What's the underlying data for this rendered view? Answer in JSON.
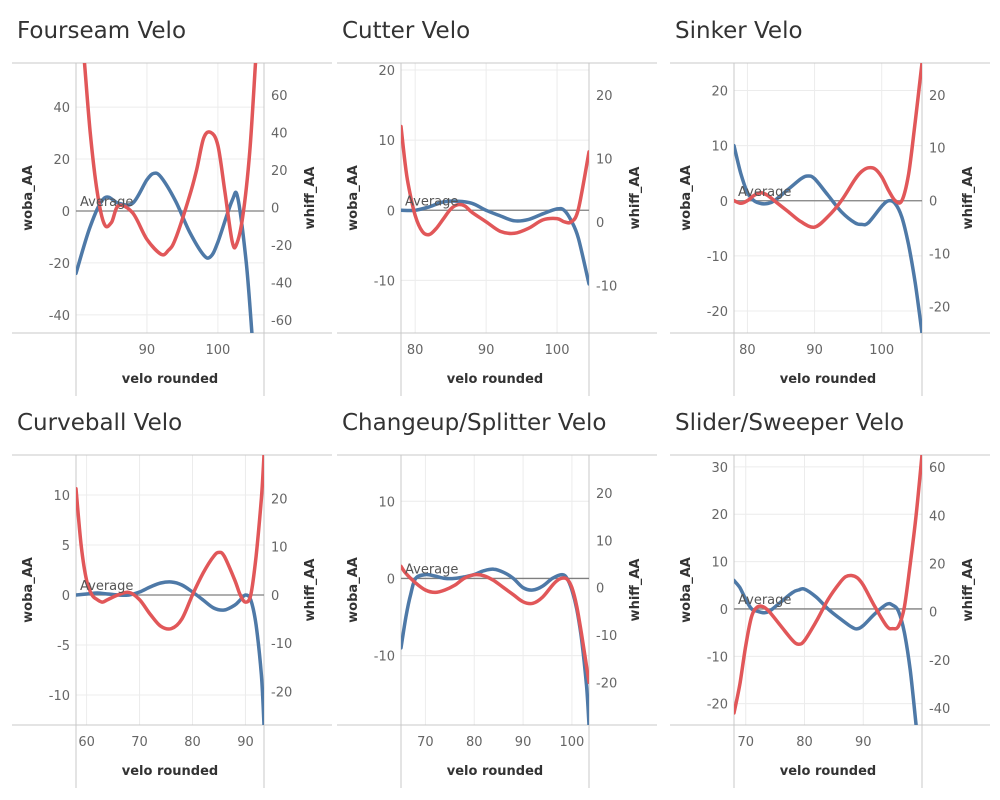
{
  "colors": {
    "woba": "#4e79a7",
    "whiff": "#e15759",
    "grid": "#ececec",
    "axis": "#c8c8c8",
    "refline": "#7f7f7f"
  },
  "chart_data": [
    {
      "type": "line",
      "title": "Fourseam Velo",
      "xlabel": "velo rounded",
      "ylabel_left": "woba_AA",
      "ylabel_right": "whiff_AA",
      "reference_label": "Average",
      "reference_value": 0,
      "xlim": [
        80,
        106.5
      ],
      "ylim_left": [
        -47,
        57
      ],
      "ylim_right": [
        -67,
        77
      ],
      "x_ticks": [
        90,
        100
      ],
      "y_ticks_left": [
        -40,
        -20,
        0,
        20,
        40
      ],
      "y_ticks_right": [
        -60,
        -40,
        -20,
        0,
        20,
        40,
        60
      ],
      "series": [
        {
          "name": "woba_AA",
          "axis": "left",
          "x": [
            80,
            82,
            84,
            86,
            88,
            90,
            91,
            92,
            94,
            96,
            98,
            99,
            100,
            102,
            102.8,
            104,
            104.8
          ],
          "y": [
            -24,
            -6,
            5,
            3,
            3,
            12,
            14.5,
            13,
            4,
            -8,
            -17,
            -17.5,
            -12,
            4,
            5,
            -20,
            -47
          ]
        },
        {
          "name": "whiff_AA",
          "axis": "right",
          "x": [
            81.2,
            82,
            83,
            84,
            85,
            86,
            88,
            90,
            92,
            93,
            94,
            96,
            97,
            98,
            99,
            100,
            101,
            102,
            102.6,
            103.5,
            104.5,
            105.3
          ],
          "y": [
            77,
            40,
            8,
            -9,
            -8,
            1,
            -3,
            -17,
            -25,
            -23,
            -17,
            6,
            20,
            37,
            40,
            33,
            8,
            -18,
            -20,
            -5,
            30,
            77
          ]
        }
      ]
    },
    {
      "type": "line",
      "title": "Cutter Velo",
      "xlabel": "velo rounded",
      "ylabel_left": "woba_AA",
      "ylabel_right": "whiff_AA",
      "reference_label": "Average",
      "reference_value": 0,
      "xlim": [
        78,
        104.5
      ],
      "ylim_left": [
        -17.5,
        21
      ],
      "ylim_right": [
        -17.5,
        25
      ],
      "x_ticks": [
        80,
        90,
        100
      ],
      "y_ticks_left": [
        -10,
        0,
        10,
        20
      ],
      "y_ticks_right": [
        -10,
        0,
        10,
        20
      ],
      "series": [
        {
          "name": "woba_AA",
          "axis": "left",
          "x": [
            78,
            80,
            82,
            84,
            86,
            88,
            90,
            92,
            94,
            96,
            98,
            100,
            101,
            102,
            103,
            104.5
          ],
          "y": [
            0,
            0,
            0.5,
            1.2,
            1.3,
            1,
            0,
            -0.8,
            -1.5,
            -1.3,
            -0.5,
            0.2,
            0,
            -1.5,
            -4,
            -10.5
          ]
        },
        {
          "name": "whiff_AA",
          "axis": "right",
          "x": [
            78,
            78.5,
            79,
            80,
            81,
            82,
            83,
            84,
            85,
            86,
            87,
            88,
            90,
            92,
            94,
            96,
            98,
            100,
            101,
            102,
            103,
            104.5
          ],
          "y": [
            15,
            10,
            6,
            1,
            -1.5,
            -2,
            -1,
            0.5,
            2,
            2.7,
            2.5,
            1.5,
            0,
            -1.5,
            -1.8,
            -1,
            0.3,
            0.5,
            0,
            0,
            2,
            11
          ]
        }
      ]
    },
    {
      "type": "line",
      "title": "Sinker Velo",
      "xlabel": "velo rounded",
      "ylabel_left": "woba_AA",
      "ylabel_right": "whiff_AA",
      "reference_label": "Average",
      "reference_value": 0,
      "xlim": [
        78,
        106
      ],
      "ylim_left": [
        -24,
        25
      ],
      "ylim_right": [
        -25,
        26
      ],
      "x_ticks": [
        80,
        90,
        100
      ],
      "y_ticks_left": [
        -20,
        -10,
        0,
        10,
        20
      ],
      "y_ticks_right": [
        -20,
        -10,
        0,
        10,
        20
      ],
      "series": [
        {
          "name": "woba_AA",
          "axis": "left",
          "x": [
            78,
            79,
            80,
            81,
            82,
            83,
            84,
            86,
            88,
            89,
            90,
            92,
            94,
            96,
            97,
            98,
            100,
            101,
            102,
            103,
            104,
            105,
            106
          ],
          "y": [
            10,
            5,
            1.5,
            0,
            -0.5,
            -0.5,
            0,
            2,
            4,
            4.5,
            4,
            1,
            -2,
            -4,
            -4.3,
            -4,
            -1,
            0,
            -0.5,
            -3,
            -8,
            -15,
            -24
          ]
        },
        {
          "name": "whiff_AA",
          "axis": "right",
          "x": [
            78,
            79,
            80,
            81,
            82,
            83,
            84,
            86,
            88,
            90,
            92,
            94,
            96,
            97,
            98,
            99,
            100,
            101,
            102,
            103,
            104,
            105,
            106
          ],
          "y": [
            0,
            -0.5,
            0,
            1,
            1.5,
            1,
            0,
            -2,
            -4,
            -5,
            -3,
            0,
            4,
            5.5,
            6.2,
            6,
            4.5,
            2,
            0,
            0,
            5,
            15,
            26
          ]
        }
      ]
    },
    {
      "type": "line",
      "title": "Curveball Velo",
      "xlabel": "velo rounded",
      "ylabel_left": "woba_AA",
      "ylabel_right": "whiff_AA",
      "reference_label": "Average",
      "reference_value": 0,
      "xlim": [
        58,
        93.5
      ],
      "ylim_left": [
        -13,
        14
      ],
      "ylim_right": [
        -27,
        29
      ],
      "x_ticks": [
        60,
        70,
        80,
        90
      ],
      "y_ticks_left": [
        -10,
        -5,
        0,
        5,
        10
      ],
      "y_ticks_right": [
        -20,
        -10,
        0,
        10,
        20
      ],
      "series": [
        {
          "name": "woba_AA",
          "axis": "left",
          "x": [
            58,
            60,
            62,
            64,
            66,
            68,
            70,
            72,
            74,
            76,
            78,
            80,
            82,
            84,
            86,
            88,
            89,
            90,
            91,
            92,
            93,
            93.5
          ],
          "y": [
            0,
            0.1,
            0.2,
            0.1,
            0,
            0,
            0.3,
            0.8,
            1.2,
            1.3,
            1,
            0.3,
            -0.5,
            -1.3,
            -1.5,
            -1,
            -0.5,
            0,
            -0.5,
            -3,
            -8,
            -13
          ]
        },
        {
          "name": "whiff_AA",
          "axis": "right",
          "x": [
            58,
            59,
            60,
            61,
            62,
            63,
            64,
            66,
            68,
            70,
            72,
            74,
            76,
            78,
            80,
            82,
            84,
            85,
            86,
            88,
            89,
            90,
            91,
            92,
            93,
            93.5
          ],
          "y": [
            22,
            10,
            3,
            0,
            -1,
            -1.5,
            -1,
            0,
            0.5,
            -1,
            -4,
            -6.5,
            -7,
            -5,
            0,
            4.5,
            8,
            8.8,
            8,
            3,
            0,
            -1.5,
            0,
            8,
            20,
            29
          ]
        }
      ]
    },
    {
      "type": "line",
      "title": "Changeup/Splitter Velo",
      "xlabel": "velo rounded",
      "ylabel_left": "woba_AA",
      "ylabel_right": "whiff_AA",
      "reference_label": "Average",
      "reference_value": 0,
      "xlim": [
        65,
        103.5
      ],
      "ylim_left": [
        -19,
        16
      ],
      "ylim_right": [
        -29,
        28
      ],
      "x_ticks": [
        70,
        80,
        90,
        100
      ],
      "y_ticks_left": [
        -10,
        0,
        10
      ],
      "y_ticks_right": [
        -20,
        -10,
        0,
        10,
        20
      ],
      "series": [
        {
          "name": "woba_AA",
          "axis": "left",
          "x": [
            65,
            66,
            67,
            68,
            70,
            72,
            74,
            76,
            78,
            80,
            82,
            84,
            86,
            88,
            90,
            92,
            94,
            96,
            98,
            99,
            100,
            101,
            102,
            103,
            103.5
          ],
          "y": [
            -9,
            -5,
            -2,
            0,
            0.5,
            0.3,
            0,
            0,
            0.2,
            0.5,
            1,
            1.2,
            0.8,
            0,
            -1.2,
            -1.5,
            -1,
            0,
            0.5,
            0,
            -1.5,
            -4,
            -8,
            -14,
            -19
          ]
        },
        {
          "name": "whiff_AA",
          "axis": "right",
          "x": [
            65,
            66,
            68,
            70,
            72,
            74,
            76,
            78,
            80,
            82,
            84,
            86,
            88,
            90,
            92,
            94,
            96,
            97,
            98,
            99,
            100,
            101,
            102,
            103.5
          ],
          "y": [
            4.5,
            3,
            1,
            -0.5,
            -1,
            -0.5,
            0.5,
            2,
            2.7,
            2.5,
            1.5,
            0,
            -1.5,
            -3,
            -3.3,
            -2,
            0.5,
            1.5,
            2,
            1.8,
            0,
            -4,
            -10,
            -20
          ]
        }
      ]
    },
    {
      "type": "line",
      "title": "Slider/Sweeper Velo",
      "xlabel": "velo rounded",
      "ylabel_left": "woba_AA",
      "ylabel_right": "whiff_AA",
      "reference_label": "Average",
      "reference_value": 0,
      "xlim": [
        68,
        100
      ],
      "ylim_left": [
        -24.5,
        32.5
      ],
      "ylim_right": [
        -47,
        65
      ],
      "x_ticks": [
        70,
        80,
        90
      ],
      "y_ticks_left": [
        -20,
        -10,
        0,
        10,
        20,
        30
      ],
      "y_ticks_right": [
        -40,
        -20,
        0,
        20,
        40,
        60
      ],
      "series": [
        {
          "name": "woba_AA",
          "axis": "left",
          "x": [
            68,
            69,
            70,
            71,
            72,
            73,
            74,
            76,
            78,
            79,
            80,
            82,
            84,
            86,
            88,
            89,
            90,
            92,
            94,
            95,
            96,
            97,
            98,
            99
          ],
          "y": [
            6,
            4.5,
            2,
            0,
            -0.5,
            -0.8,
            -0.5,
            1.5,
            3.5,
            4,
            4.2,
            2.5,
            0,
            -2,
            -3.8,
            -4.2,
            -3.5,
            -1,
            1,
            0.8,
            -0.5,
            -5,
            -13,
            -24.5
          ]
        },
        {
          "name": "whiff_AA",
          "axis": "right",
          "x": [
            68,
            69,
            70,
            71,
            72,
            73,
            74,
            76,
            78,
            79,
            80,
            82,
            84,
            86,
            87,
            88,
            89,
            90,
            92,
            94,
            95,
            96,
            97,
            98,
            99,
            100
          ],
          "y": [
            -42,
            -30,
            -14,
            -2,
            2,
            2,
            0,
            -6,
            -12,
            -13.5,
            -12,
            -4,
            5,
            12,
            14.5,
            15,
            14,
            11,
            2,
            -6,
            -7,
            -6,
            2,
            20,
            40,
            65
          ]
        }
      ]
    }
  ]
}
